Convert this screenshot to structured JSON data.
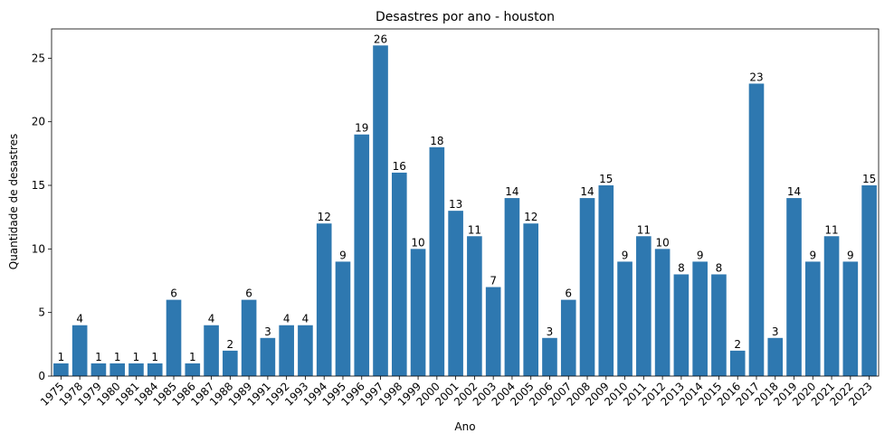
{
  "chart_data": {
    "type": "bar",
    "title": "Desastres por ano - houston",
    "xlabel": "Ano",
    "ylabel": "Quantidade de desastres",
    "categories": [
      "1975",
      "1978",
      "1979",
      "1980",
      "1981",
      "1984",
      "1985",
      "1986",
      "1987",
      "1988",
      "1989",
      "1991",
      "1992",
      "1993",
      "1994",
      "1995",
      "1996",
      "1997",
      "1998",
      "1999",
      "2000",
      "2001",
      "2002",
      "2003",
      "2004",
      "2005",
      "2006",
      "2007",
      "2008",
      "2009",
      "2010",
      "2011",
      "2012",
      "2013",
      "2014",
      "2015",
      "2016",
      "2017",
      "2018",
      "2019",
      "2020",
      "2021",
      "2022",
      "2023"
    ],
    "values": [
      1,
      4,
      1,
      1,
      1,
      1,
      6,
      1,
      4,
      2,
      6,
      3,
      4,
      4,
      12,
      9,
      19,
      26,
      16,
      10,
      18,
      13,
      11,
      7,
      14,
      12,
      3,
      6,
      14,
      15,
      9,
      11,
      10,
      8,
      9,
      8,
      2,
      23,
      3,
      14,
      9,
      11,
      9,
      15
    ],
    "ylim": [
      0,
      27.3
    ],
    "yticks": [
      0,
      5,
      10,
      15,
      20,
      25
    ],
    "bar_color": "#2e78b0",
    "grid": false,
    "legend": "none"
  }
}
